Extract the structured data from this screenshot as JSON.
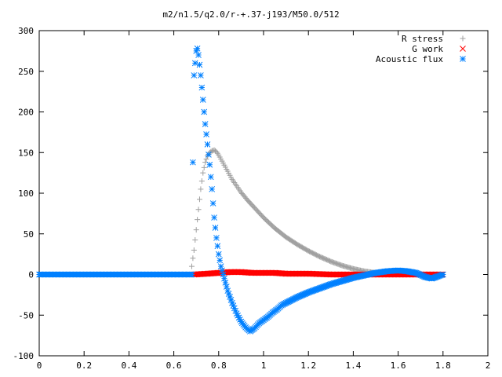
{
  "chart_data": {
    "type": "scatter",
    "title": "m2/n1.5/q2.0/r-+.37-j193/M50.0/512",
    "xlabel": "",
    "ylabel": "",
    "xlim": [
      0,
      2
    ],
    "ylim": [
      -100,
      300
    ],
    "x_ticks": [
      0,
      0.2,
      0.4,
      0.6,
      0.8,
      1,
      1.2,
      1.4,
      1.6,
      1.8,
      2
    ],
    "x_tick_labels": [
      "0",
      "0.2",
      "0.4",
      "0.6",
      "0.8",
      "1",
      "1.2",
      "1.4",
      "1.6",
      "1.8",
      "2"
    ],
    "y_ticks": [
      -100,
      -50,
      0,
      50,
      100,
      150,
      200,
      250,
      300
    ],
    "y_tick_labels": [
      "-100",
      "-50",
      "0",
      "50",
      "100",
      "150",
      "200",
      "250",
      "300"
    ],
    "grid": false,
    "legend_position": "top-right",
    "series": [
      {
        "name": "R stress",
        "marker": "plus",
        "color": "#a0a0a0",
        "x": [
          0.68,
          0.69,
          0.7,
          0.71,
          0.72,
          0.73,
          0.74,
          0.75,
          0.76,
          0.77,
          0.78,
          0.79,
          0.8,
          0.82,
          0.84,
          0.86,
          0.88,
          0.9,
          0.93,
          0.96,
          1.0,
          1.05,
          1.1,
          1.15,
          1.2,
          1.25,
          1.3,
          1.35,
          1.4,
          1.45,
          1.5,
          1.55,
          1.6,
          1.65,
          1.7,
          1.75,
          1.8
        ],
        "y": [
          10,
          30,
          55,
          80,
          105,
          125,
          138,
          146,
          150,
          152,
          153,
          151,
          147,
          137,
          127,
          117,
          109,
          101,
          91,
          82,
          70,
          57,
          46,
          37,
          29,
          22,
          16,
          11,
          7,
          4,
          2,
          1,
          0,
          0,
          0,
          0,
          0
        ]
      },
      {
        "name": "G work",
        "marker": "cross",
        "color": "#ff0000",
        "x": [
          0.69,
          0.75,
          0.8,
          0.85,
          0.9,
          0.95,
          1.0,
          1.05,
          1.1,
          1.2,
          1.3,
          1.4,
          1.5,
          1.6,
          1.7,
          1.8
        ],
        "y": [
          0,
          1,
          2,
          3,
          3,
          2,
          2,
          2,
          1,
          1,
          0,
          0,
          0,
          0,
          0,
          0
        ]
      },
      {
        "name": "Acoustic flux",
        "marker": "star",
        "color": "#0080ff",
        "x": [
          0.0,
          0.1,
          0.2,
          0.3,
          0.4,
          0.5,
          0.6,
          0.68,
          0.685,
          0.69,
          0.7,
          0.705,
          0.71,
          0.715,
          0.72,
          0.73,
          0.74,
          0.75,
          0.76,
          0.77,
          0.78,
          0.79,
          0.8,
          0.81,
          0.82,
          0.84,
          0.86,
          0.88,
          0.9,
          0.92,
          0.94,
          0.96,
          0.98,
          1.0,
          1.02,
          1.04,
          1.06,
          1.08,
          1.1,
          1.15,
          1.2,
          1.25,
          1.3,
          1.35,
          1.4,
          1.45,
          1.5,
          1.55,
          1.6,
          1.64,
          1.68,
          1.72,
          1.75,
          1.78,
          1.8
        ],
        "y": [
          0,
          0,
          0,
          0,
          0,
          0,
          0,
          0,
          138,
          245,
          275,
          278,
          270,
          258,
          245,
          215,
          185,
          160,
          135,
          105,
          70,
          45,
          25,
          10,
          0,
          -20,
          -35,
          -48,
          -58,
          -65,
          -70,
          -66,
          -60,
          -56,
          -52,
          -47,
          -43,
          -38,
          -35,
          -28,
          -22,
          -17,
          -12,
          -8,
          -4,
          -1,
          2,
          4,
          5,
          4,
          2,
          -3,
          -5,
          -2,
          0
        ]
      }
    ]
  }
}
